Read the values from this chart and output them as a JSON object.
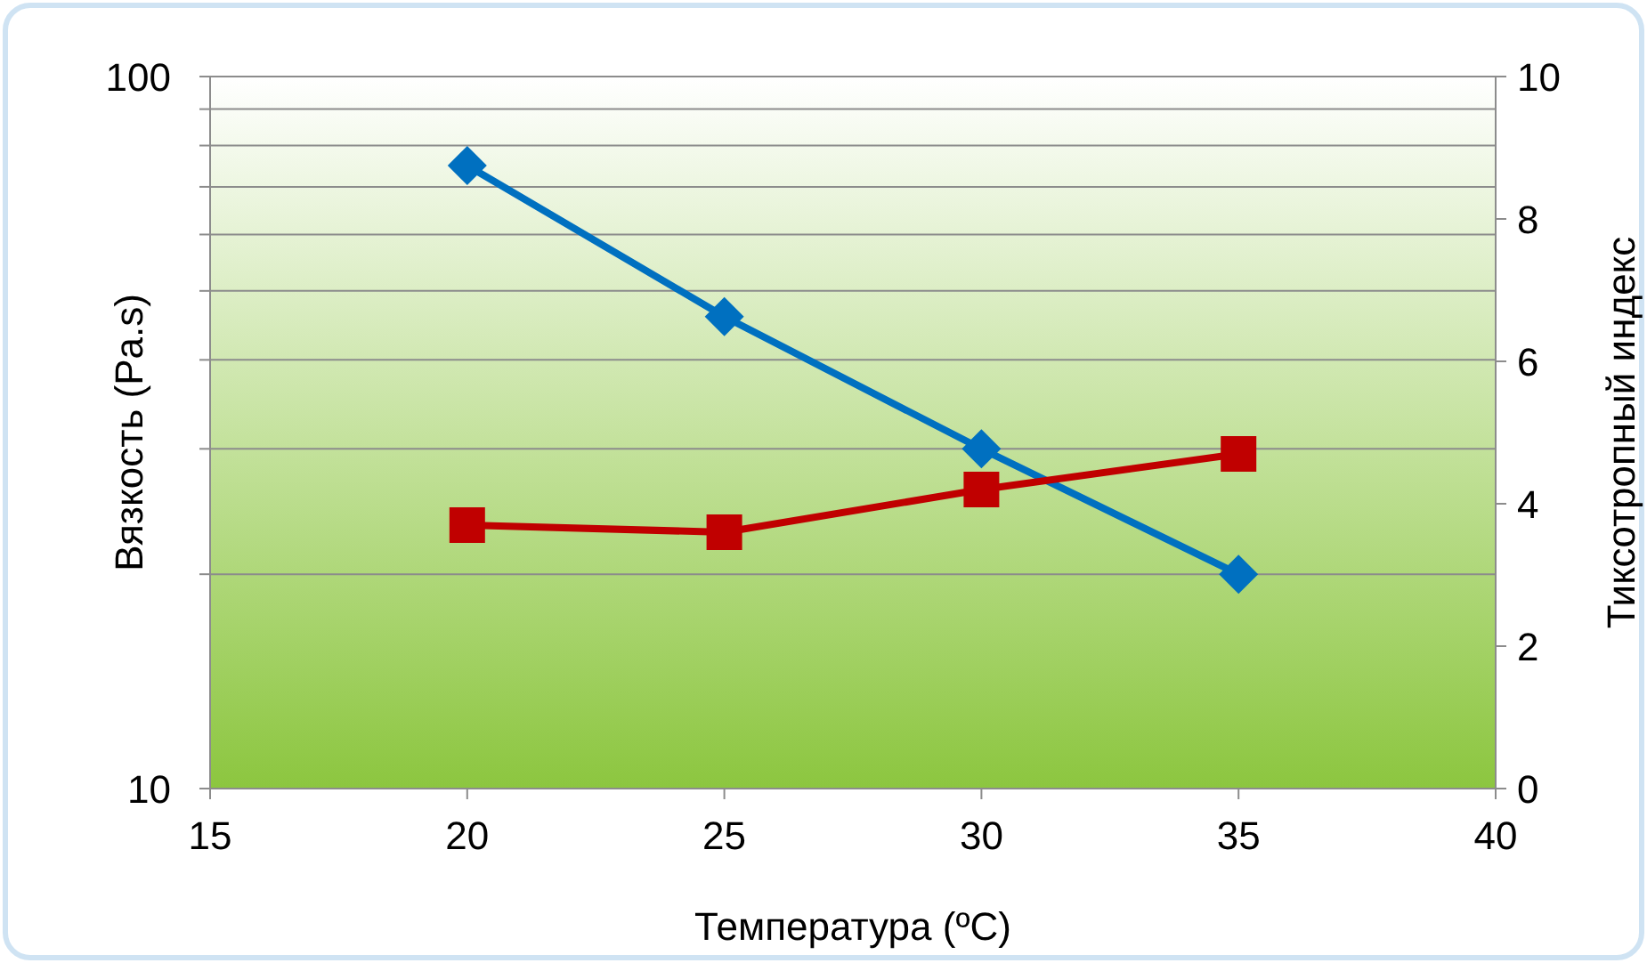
{
  "chart_data": {
    "type": "line",
    "xlabel": "Температура (ºC)",
    "ylabel": "Вязкость (Pa.s)",
    "y2label": "Тикcотропный индекс",
    "x": [
      20,
      25,
      30,
      35
    ],
    "xlim": [
      15,
      40
    ],
    "xticks": [
      15,
      20,
      25,
      30,
      35,
      40
    ],
    "log": "y",
    "ylim": [
      10,
      100
    ],
    "yticks": [
      10,
      {
        "value": 20,
        "label": null
      },
      {
        "value": 30,
        "label": null
      },
      {
        "value": 40,
        "label": null
      },
      {
        "value": 50,
        "label": null
      },
      {
        "value": 60,
        "label": null
      },
      {
        "value": 70,
        "label": null
      },
      {
        "value": 80,
        "label": null
      },
      {
        "value": 90,
        "label": null
      },
      100
    ],
    "y2lim": [
      0,
      10
    ],
    "y2ticks": [
      0,
      2,
      4,
      6,
      8,
      10
    ],
    "grid": "y",
    "line_style": "solid",
    "series": [
      {
        "color": "#0070c0",
        "marker": "diamond",
        "values": [
          75,
          46,
          30,
          20
        ]
      },
      {
        "color": "#c00000",
        "marker": "square",
        "axis": "y2",
        "values": [
          3.7,
          3.6,
          4.2,
          4.7
        ]
      }
    ]
  }
}
